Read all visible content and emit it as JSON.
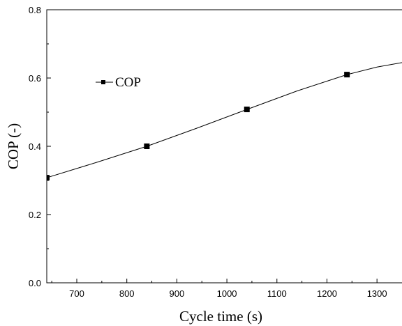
{
  "chart_data": {
    "type": "line",
    "title": "",
    "xlabel": "Cycle time (s)",
    "ylabel": "COP (-)",
    "xlim": [
      640,
      1350
    ],
    "ylim": [
      0,
      0.8
    ],
    "xticks": [
      700,
      800,
      900,
      1000,
      1100,
      1200,
      1300
    ],
    "xtick_labels": [
      "700",
      "800",
      "900",
      "1000",
      "1100",
      "1200",
      "1300"
    ],
    "yticks": [
      0.0,
      0.2,
      0.4,
      0.6,
      0.8
    ],
    "ytick_labels": [
      "0.0",
      "0.2",
      "0.4",
      "0.6",
      "0.8"
    ],
    "grid": false,
    "legend_position": "upper-left",
    "series": [
      {
        "name": "COP",
        "marker": "square",
        "color": "#000000",
        "points": [
          {
            "x": 640,
            "y": 0.308
          },
          {
            "x": 840,
            "y": 0.4
          },
          {
            "x": 1040,
            "y": 0.508
          },
          {
            "x": 1240,
            "y": 0.61
          }
        ],
        "curve": [
          {
            "x": 640,
            "y": 0.308
          },
          {
            "x": 740,
            "y": 0.353
          },
          {
            "x": 840,
            "y": 0.4
          },
          {
            "x": 940,
            "y": 0.453
          },
          {
            "x": 1040,
            "y": 0.508
          },
          {
            "x": 1140,
            "y": 0.562
          },
          {
            "x": 1240,
            "y": 0.61
          },
          {
            "x": 1300,
            "y": 0.632
          },
          {
            "x": 1350,
            "y": 0.645
          }
        ]
      }
    ]
  }
}
